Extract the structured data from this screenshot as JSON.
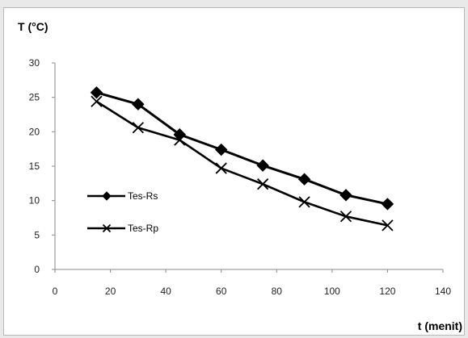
{
  "chart_data": {
    "type": "line",
    "title": "",
    "ylabel": "T (°C)",
    "xlabel": "t (menit)",
    "xlim": [
      0,
      140
    ],
    "ylim": [
      0,
      30
    ],
    "xticks": [
      0,
      20,
      40,
      60,
      80,
      100,
      120,
      140
    ],
    "yticks": [
      0,
      5,
      10,
      15,
      20,
      25,
      30
    ],
    "grid": false,
    "legend_position": "left",
    "x": [
      15,
      30,
      45,
      60,
      75,
      90,
      105,
      120
    ],
    "series": [
      {
        "name": "Tes-Rs",
        "marker": "diamond",
        "color": "#000000",
        "values": [
          25.7,
          24.0,
          19.6,
          17.4,
          15.1,
          13.1,
          10.8,
          9.5
        ]
      },
      {
        "name": "Tes-Rp",
        "marker": "x",
        "color": "#000000",
        "values": [
          24.4,
          20.6,
          18.8,
          14.7,
          12.4,
          9.8,
          7.7,
          6.4
        ]
      }
    ]
  }
}
